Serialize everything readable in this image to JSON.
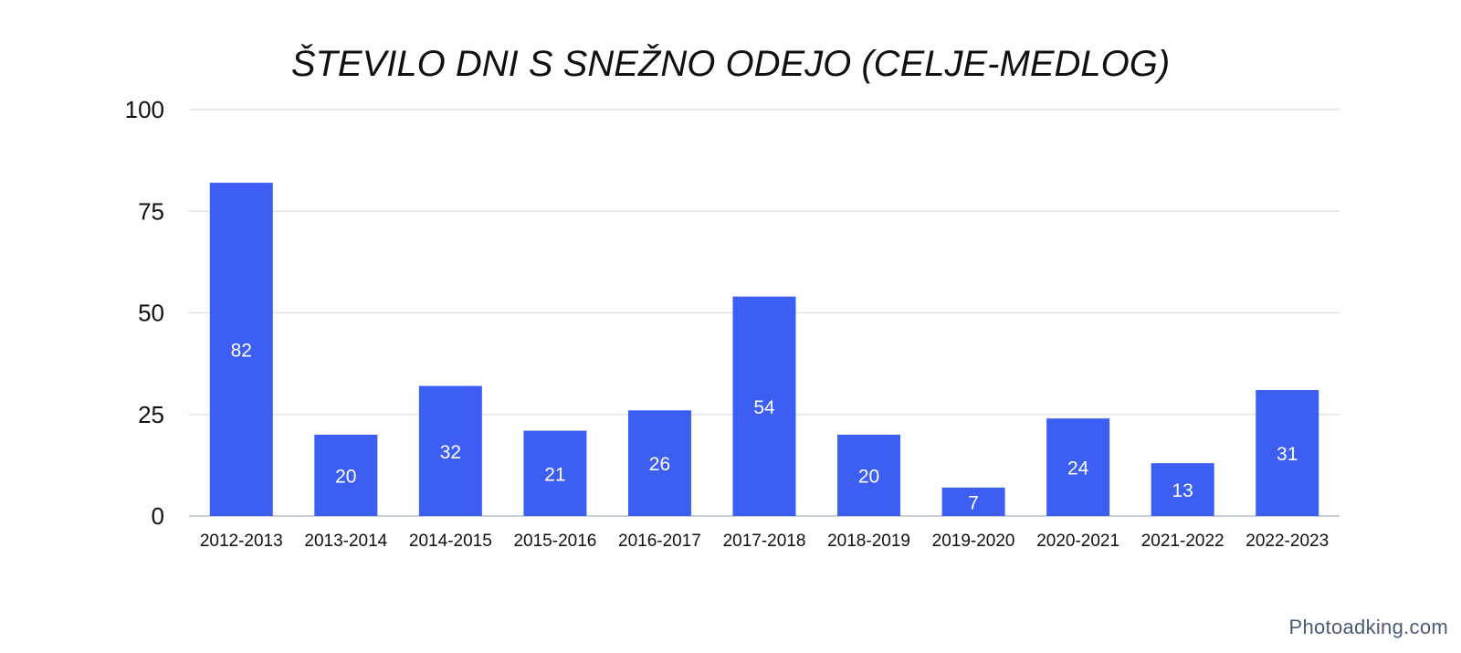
{
  "chart_data": {
    "type": "bar",
    "title": "ŠTEVILO DNI S SNEŽNO ODEJO (CELJE-MEDLOG)",
    "categories": [
      "2012-2013",
      "2013-2014",
      "2014-2015",
      "2015-2016",
      "2016-2017",
      "2017-2018",
      "2018-2019",
      "2019-2020",
      "2020-2021",
      "2021-2022",
      "2022-2023"
    ],
    "values": [
      82,
      20,
      32,
      21,
      26,
      54,
      20,
      7,
      24,
      13,
      31
    ],
    "xlabel": "",
    "ylabel": "",
    "ylim": [
      0,
      100
    ],
    "yticks": [
      0,
      25,
      50,
      75,
      100
    ],
    "grid": true,
    "legend": "none",
    "data_labels": true,
    "bar_color": "#3d5ef3"
  },
  "watermark": "Photoadking.com"
}
